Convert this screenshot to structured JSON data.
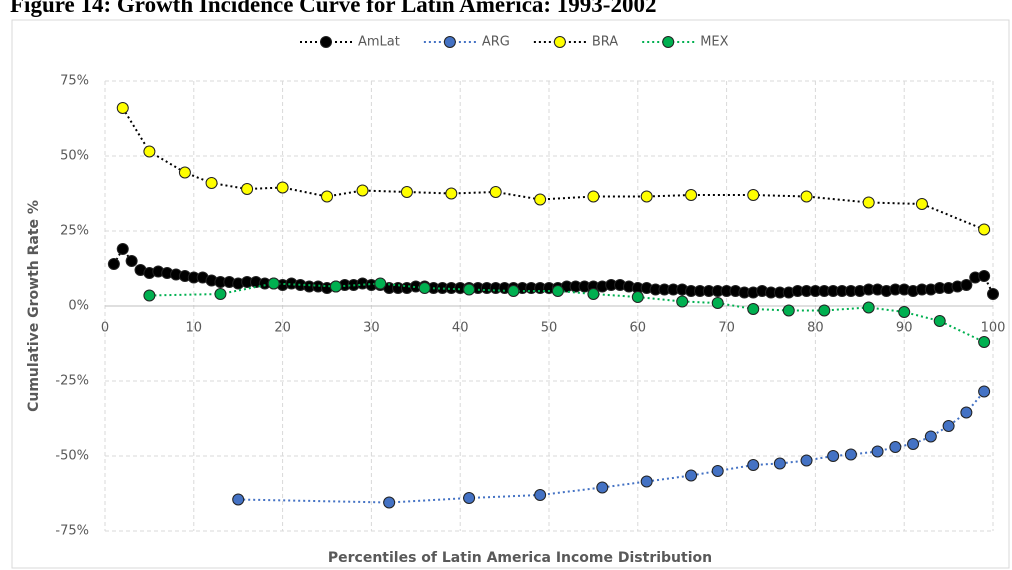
{
  "chart_data": {
    "type": "line",
    "title": "Figure 14: Growth Incidence Curve for Latin America: 1993-2002",
    "x_label": "Percentiles of Latin America Income Distribution",
    "y_label": "Cumulative Growth Rate %",
    "xlim": [
      0,
      100
    ],
    "xticks": [
      0,
      10,
      20,
      30,
      40,
      50,
      60,
      70,
      80,
      90,
      100
    ],
    "ylim": [
      -75,
      75
    ],
    "yticks": [
      {
        "value": -75,
        "label": "-75%"
      },
      {
        "value": -50,
        "label": "-50%"
      },
      {
        "value": -25,
        "label": "-25%"
      },
      {
        "value": 0,
        "label": "0%"
      },
      {
        "value": 25,
        "label": "25%"
      },
      {
        "value": 50,
        "label": "50%"
      },
      {
        "value": 75,
        "label": "75%"
      }
    ],
    "grid": true,
    "legend": "top",
    "series": [
      {
        "name": "AmLat",
        "color": "#000000",
        "line_color": "#000000",
        "x": [
          1,
          2,
          3,
          4,
          5,
          6,
          7,
          8,
          9,
          10,
          11,
          12,
          13,
          14,
          15,
          16,
          17,
          18,
          19,
          20,
          21,
          22,
          23,
          24,
          25,
          26,
          27,
          28,
          29,
          30,
          31,
          32,
          33,
          34,
          35,
          36,
          37,
          38,
          39,
          40,
          41,
          42,
          43,
          44,
          45,
          46,
          47,
          48,
          49,
          50,
          51,
          52,
          53,
          54,
          55,
          56,
          57,
          58,
          59,
          60,
          61,
          62,
          63,
          64,
          65,
          66,
          67,
          68,
          69,
          70,
          71,
          72,
          73,
          74,
          75,
          76,
          77,
          78,
          79,
          80,
          81,
          82,
          83,
          84,
          85,
          86,
          87,
          88,
          89,
          90,
          91,
          92,
          93,
          94,
          95,
          96,
          97,
          98,
          99,
          100
        ],
        "values": [
          14,
          19,
          15,
          12,
          11,
          11.5,
          11,
          10.5,
          10,
          9.5,
          9.5,
          8.5,
          8,
          8,
          7.5,
          8,
          8,
          7.5,
          7.5,
          7,
          7.5,
          7,
          6.5,
          6.5,
          6,
          6.5,
          7,
          7,
          7.5,
          7,
          7,
          6,
          6,
          6,
          6.5,
          6.5,
          6,
          6,
          6,
          6,
          6,
          6,
          6,
          6,
          6,
          6,
          6,
          6,
          6,
          6,
          6,
          6.5,
          6.5,
          6.5,
          6.5,
          6.5,
          7,
          7,
          6.5,
          6,
          6,
          5.5,
          5.5,
          5.5,
          5.5,
          5,
          5,
          5,
          5,
          5,
          5,
          4.5,
          4.5,
          5,
          4.5,
          4.5,
          4.5,
          5,
          5,
          5,
          5,
          5,
          5,
          5,
          5,
          5.5,
          5.5,
          5,
          5.5,
          5.5,
          5,
          5.5,
          5.5,
          6,
          6,
          6.5,
          7,
          9.5,
          10,
          4
        ]
      },
      {
        "name": "ARG",
        "color": "#4472c4",
        "line_color": "#4472c4",
        "x": [
          15,
          32,
          41,
          49,
          56,
          61,
          66,
          69,
          73,
          76,
          79,
          82,
          84,
          87,
          89,
          91,
          93,
          95,
          97,
          99
        ],
        "values": [
          -64.5,
          -65.5,
          -64,
          -63,
          -60.5,
          -58.5,
          -56.5,
          -55,
          -53,
          -52.5,
          -51.5,
          -50,
          -49.5,
          -48.5,
          -47,
          -46,
          -43.5,
          -40,
          -35.5,
          -28.5
        ]
      },
      {
        "name": "BRA",
        "color": "#ffff00",
        "line_color": "#000000",
        "x": [
          2,
          5,
          9,
          12,
          16,
          20,
          25,
          29,
          34,
          39,
          44,
          49,
          55,
          61,
          66,
          73,
          79,
          86,
          92,
          99
        ],
        "values": [
          66,
          51.5,
          44.5,
          41,
          39,
          39.5,
          36.5,
          38.5,
          38,
          37.5,
          38,
          35.5,
          36.5,
          36.5,
          37,
          37,
          36.5,
          34.5,
          34,
          25.5
        ]
      },
      {
        "name": "MEX",
        "color": "#00b050",
        "line_color": "#00b050",
        "x": [
          5,
          13,
          19,
          26,
          31,
          36,
          41,
          46,
          51,
          55,
          60,
          65,
          69,
          73,
          77,
          81,
          86,
          90,
          94,
          99
        ],
        "values": [
          3.5,
          4,
          7.5,
          6.5,
          7.5,
          6,
          5.5,
          5,
          5,
          4,
          3,
          1.5,
          1,
          -1,
          -1.5,
          -1.5,
          -0.5,
          -2,
          -5,
          -12
        ]
      }
    ]
  }
}
